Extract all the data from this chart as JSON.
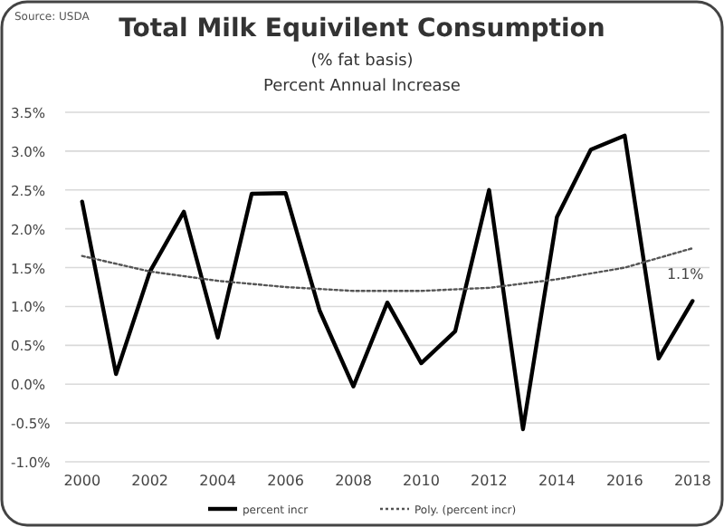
{
  "chart_data": {
    "type": "line",
    "title": "Total Milk Equivilent Consumption",
    "subtitle": "(% fat basis)",
    "annotations": [
      "Source: USDA",
      "Percent Annual Increase",
      {
        "text": "1.1%",
        "x": 2018,
        "y": 1.07
      }
    ],
    "xlim": [
      1999.5,
      2018.5
    ],
    "xticks": [
      2000,
      2002,
      2004,
      2006,
      2008,
      2010,
      2012,
      2014,
      2016,
      2018
    ],
    "ylim": [
      -1.0,
      3.5
    ],
    "yticks": [
      {
        "value": -1.0,
        "label": "-1.0%"
      },
      {
        "value": -0.5,
        "label": "-0.5%"
      },
      {
        "value": 0,
        "label": "0.0%"
      },
      {
        "value": 0.5,
        "label": "0.5%"
      },
      {
        "value": 1.0,
        "label": "1.0%"
      },
      {
        "value": 1.5,
        "label": "1.5%"
      },
      {
        "value": 2.0,
        "label": "2.0%"
      },
      {
        "value": 2.5,
        "label": "2.5%"
      },
      {
        "value": 3.0,
        "label": "3.0%"
      },
      {
        "value": 3.5,
        "label": "3.5%"
      }
    ],
    "grid": "y",
    "legend": "bottom",
    "series": [
      {
        "name": "percent incr",
        "color": "#000000",
        "line_style": "solid",
        "x": [
          2000,
          2001,
          2002,
          2003,
          2004,
          2005,
          2006,
          2007,
          2008,
          2009,
          2010,
          2011,
          2012,
          2013,
          2014,
          2015,
          2016,
          2017,
          2018
        ],
        "values": [
          2.35,
          0.13,
          1.45,
          2.22,
          0.6,
          2.45,
          2.46,
          0.95,
          -0.03,
          1.05,
          0.27,
          0.68,
          2.5,
          -0.58,
          2.15,
          3.02,
          3.2,
          0.33,
          1.07
        ]
      },
      {
        "name": "Poly. (percent incr)",
        "color": "#555555",
        "line_style": "dotted",
        "x": [
          2000,
          2002,
          2004,
          2006,
          2008,
          2010,
          2012,
          2014,
          2016,
          2018
        ],
        "values": [
          1.65,
          1.45,
          1.33,
          1.25,
          1.2,
          1.2,
          1.24,
          1.35,
          1.5,
          1.75
        ]
      }
    ]
  }
}
